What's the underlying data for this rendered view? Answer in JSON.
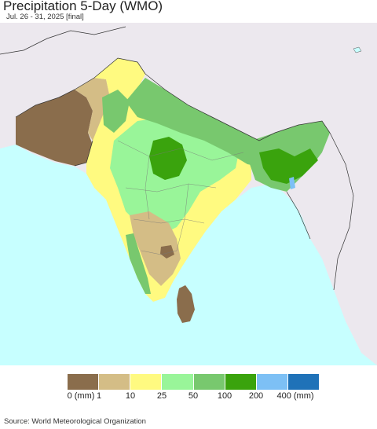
{
  "title": "Precipitation 5-Day (WMO)",
  "subtitle": "Jul. 26 - 31, 2025 [final]",
  "legend": {
    "colors": [
      "#8a6d4c",
      "#d4bd86",
      "#fffa80",
      "#99f599",
      "#78c86e",
      "#3aa30d",
      "#7dc0f5",
      "#1f72b8"
    ],
    "labels": [
      "0 (mm)",
      "1",
      "10",
      "25",
      "50",
      "100",
      "200",
      "400 (mm)"
    ]
  },
  "source": "Source: World Meteorological Organization"
}
